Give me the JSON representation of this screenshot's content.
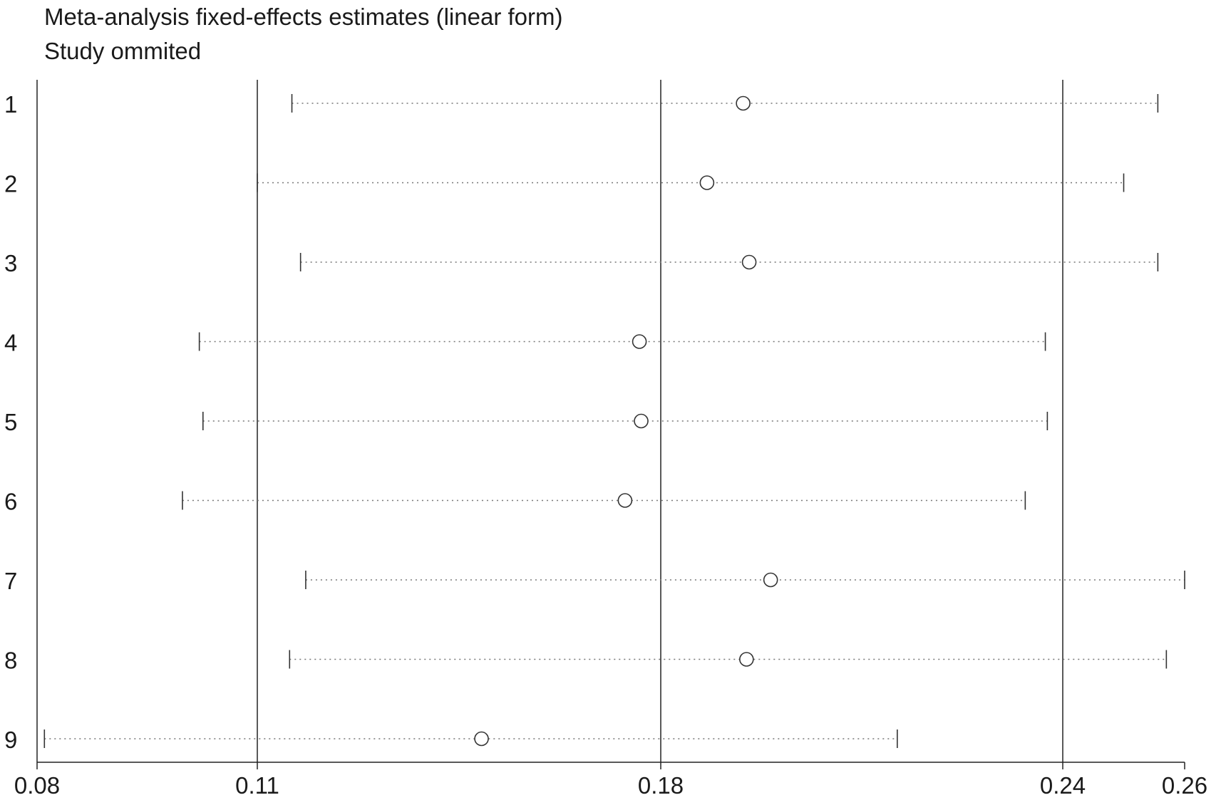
{
  "chart_data": {
    "type": "forest",
    "title": "Meta-analysis fixed-effects estimates (linear form)",
    "subtitle": "Study ommited",
    "x_ticks": [
      0.08,
      0.11,
      0.18,
      0.24,
      0.26
    ],
    "x_tick_labels": [
      "0.08",
      "0.11",
      "0.18",
      "0.24",
      "0.26"
    ],
    "xlim": [
      0.08,
      0.26
    ],
    "reference_lines": [
      0.11,
      0.18,
      0.24
    ],
    "rows": [
      {
        "label": "1",
        "lower": 0.116,
        "estimate": 0.1923,
        "upper": 0.2556
      },
      {
        "label": "2",
        "lower": 0.11,
        "estimate": 0.1869,
        "upper": 0.25
      },
      {
        "label": "3",
        "lower": 0.1175,
        "estimate": 0.1932,
        "upper": 0.2556
      },
      {
        "label": "4",
        "lower": 0.1021,
        "estimate": 0.1763,
        "upper": 0.2374
      },
      {
        "label": "5",
        "lower": 0.1026,
        "estimate": 0.1766,
        "upper": 0.2377
      },
      {
        "label": "6",
        "lower": 0.0998,
        "estimate": 0.1738,
        "upper": 0.2344
      },
      {
        "label": "7",
        "lower": 0.1184,
        "estimate": 0.1964,
        "upper": 0.26
      },
      {
        "label": "8",
        "lower": 0.1156,
        "estimate": 0.1928,
        "upper": 0.257
      },
      {
        "label": "9",
        "lower": 0.081,
        "estimate": 0.1489,
        "upper": 0.2153
      }
    ]
  }
}
